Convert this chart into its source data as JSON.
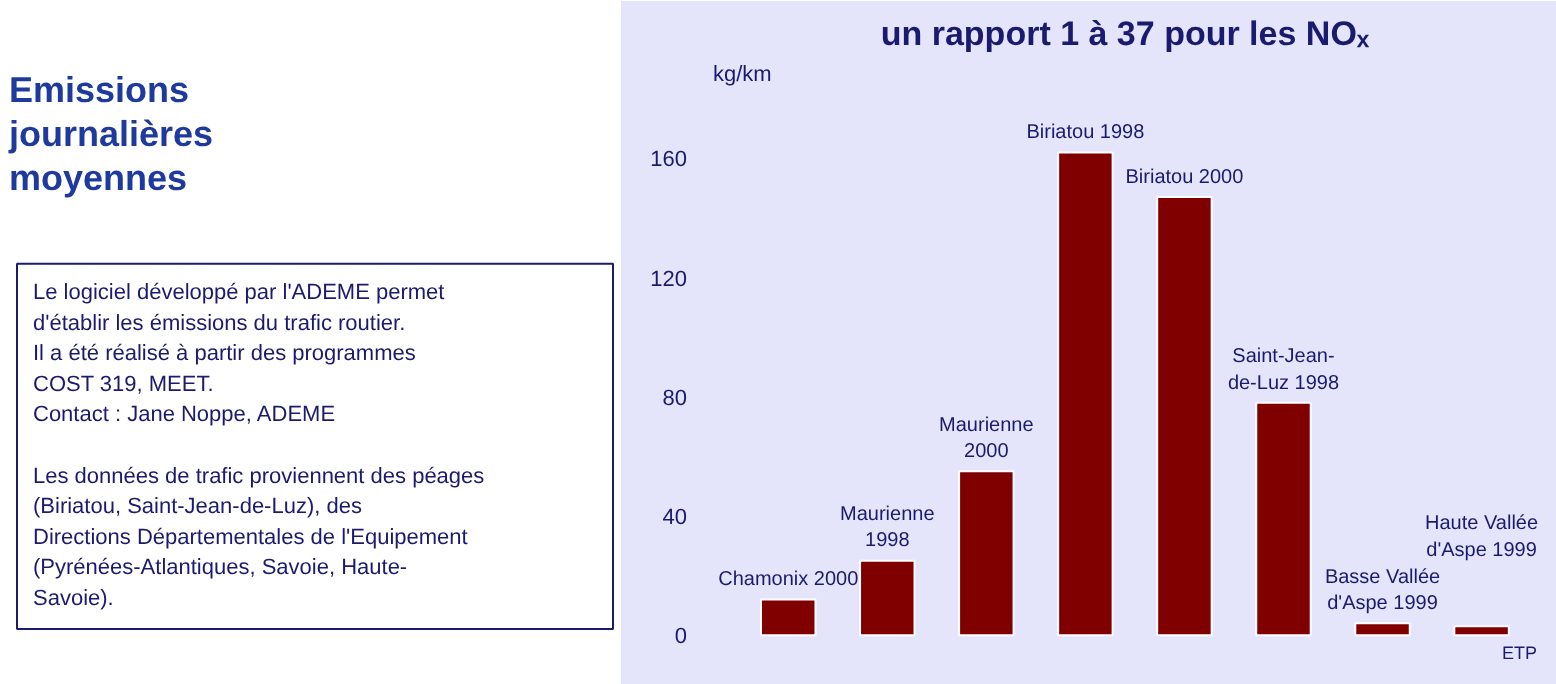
{
  "chart_data": {
    "type": "bar",
    "title": "Emissions journalières moyennes",
    "subtitle": "un rapport 1 à 37 pour les NOₓ",
    "ylabel": "kg/km",
    "categories": [
      "Chamonix 2000",
      "Maurienne 1998",
      "Maurienne 2000",
      "Biriatou 1998",
      "Biriatou 2000",
      "Saint-Jean-de-Luz 1998",
      "Basse Vallée d'Aspe 1999",
      "Haute Vallée d'Aspe 1999"
    ],
    "values": [
      12,
      25,
      55,
      162,
      147,
      78,
      4,
      3
    ],
    "color": "#800000",
    "ylim": [
      -10,
      192
    ],
    "yticks": [
      0,
      40,
      80,
      120,
      160
    ],
    "grid": false,
    "annotations": [
      "Le logiciel développé par l'ADEME permet d'établir les émissions du trafic routier. Il a été réalisé à partir des programmes COST 319, MEET.",
      "Contact : Jane Noppe, ADEME",
      "Les données de trafic proviennent des péages (Biriatou, Saint-Jean-de-Luz), des Directions Départementales de l'Equipement (Pyrénées-Atlantiques, Savoie, Haute-Savoie).",
      "ETP"
    ]
  }
}
